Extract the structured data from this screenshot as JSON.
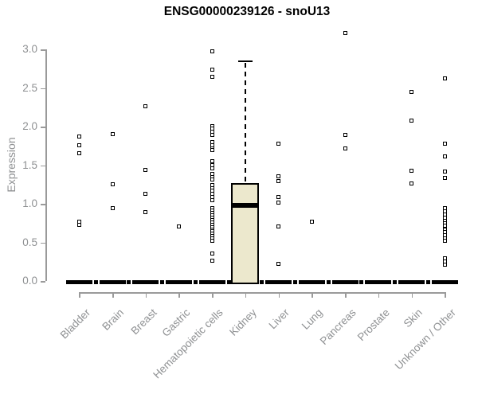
{
  "colors": {
    "box_fill": "#ece8cd",
    "axis": "#9a9a9a",
    "tick_text": "#8f9193",
    "data": "#000000",
    "background": "#ffffff"
  },
  "chart_data": {
    "type": "boxplot",
    "title": "ENSG00000239126 - snoU13",
    "ylabel": "Expression",
    "xlabel": "",
    "ylim": [
      0,
      3.2
    ],
    "yticks": [
      "0.0",
      "0.5",
      "1.0",
      "1.5",
      "2.0",
      "2.5",
      "3.0"
    ],
    "grid": false,
    "legend": "none",
    "categories": [
      "Bladder",
      "Brain",
      "Breast",
      "Gastric",
      "Hematopoietic cells",
      "Kidney",
      "Liver",
      "Lung",
      "Pancreas",
      "Prostate",
      "Skin",
      "Unknown / Other"
    ],
    "series": [
      {
        "label": "Bladder",
        "q1": 0,
        "median": 0,
        "q3": 0,
        "whisker_low": 0,
        "whisker_high": 0,
        "outliers": [
          1.87,
          1.76,
          1.66,
          0.77,
          0.73
        ]
      },
      {
        "label": "Brain",
        "q1": 0,
        "median": 0,
        "q3": 0,
        "whisker_low": 0,
        "whisker_high": 0,
        "outliers": [
          1.9,
          1.25,
          0.94
        ]
      },
      {
        "label": "Breast",
        "q1": 0,
        "median": 0,
        "q3": 0,
        "whisker_low": 0,
        "whisker_high": 0,
        "outliers": [
          2.26,
          1.44,
          1.13,
          0.89
        ]
      },
      {
        "label": "Gastric",
        "q1": 0,
        "median": 0,
        "q3": 0,
        "whisker_low": 0,
        "whisker_high": 0,
        "outliers": [
          0.71
        ]
      },
      {
        "label": "Hematopoietic cells",
        "q1": 0,
        "median": 0,
        "q3": 0,
        "whisker_low": 0,
        "whisker_high": 0,
        "outliers": [
          2.97,
          2.74,
          2.64,
          2.01,
          1.97,
          1.93,
          1.89,
          1.8,
          1.76,
          1.72,
          1.7,
          1.55,
          1.5,
          1.46,
          1.39,
          1.35,
          1.31,
          1.24,
          1.2,
          1.17,
          1.13,
          1.09,
          1.05,
          0.94,
          0.91,
          0.88,
          0.85,
          0.82,
          0.79,
          0.76,
          0.73,
          0.7,
          0.67,
          0.64,
          0.61,
          0.58,
          0.55,
          0.52,
          0.36,
          0.26
        ]
      },
      {
        "label": "Kidney",
        "q1": 0.0,
        "median": 0.98,
        "q3": 1.27,
        "whisker_low": 0.0,
        "whisker_high": 2.85,
        "outliers": []
      },
      {
        "label": "Liver",
        "q1": 0,
        "median": 0,
        "q3": 0,
        "whisker_low": 0,
        "whisker_high": 0,
        "outliers": [
          1.78,
          1.36,
          1.29,
          1.09,
          1.02,
          0.71,
          0.22
        ]
      },
      {
        "label": "Lung",
        "q1": 0,
        "median": 0,
        "q3": 0,
        "whisker_low": 0,
        "whisker_high": 0,
        "outliers": [
          0.77
        ]
      },
      {
        "label": "Pancreas",
        "q1": 0,
        "median": 0,
        "q3": 0,
        "whisker_low": 0,
        "whisker_high": 0,
        "outliers": [
          3.21,
          1.89,
          1.72
        ]
      },
      {
        "label": "Prostate",
        "q1": 0,
        "median": 0,
        "q3": 0,
        "whisker_low": 0,
        "whisker_high": 0,
        "outliers": []
      },
      {
        "label": "Skin",
        "q1": 0,
        "median": 0,
        "q3": 0,
        "whisker_low": 0,
        "whisker_high": 0,
        "outliers": [
          2.45,
          2.08,
          1.43,
          1.26
        ]
      },
      {
        "label": "Unknown / Other",
        "q1": 0,
        "median": 0,
        "q3": 0,
        "whisker_low": 0,
        "whisker_high": 0,
        "outliers": [
          2.62,
          1.78,
          1.61,
          1.42,
          1.34,
          0.94,
          0.9,
          0.86,
          0.82,
          0.78,
          0.75,
          0.72,
          0.67,
          0.63,
          0.59,
          0.55,
          0.52,
          0.29,
          0.25,
          0.21
        ]
      }
    ]
  }
}
